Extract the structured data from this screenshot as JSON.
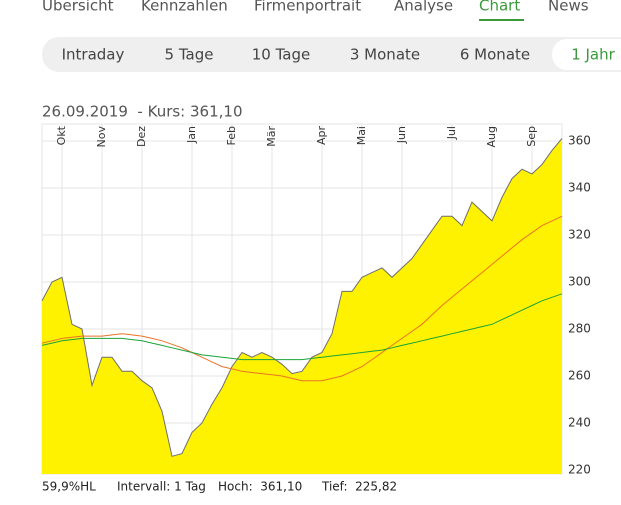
{
  "nav": {
    "tabs": [
      "Übersicht",
      "Kennzahlen",
      "Firmenportrait",
      "Analyse",
      "Chart",
      "News"
    ],
    "active": 4
  },
  "ranges": {
    "tabs": [
      "Intraday",
      "5 Tage",
      "10 Tage",
      "3 Monate",
      "6 Monate",
      "1 Jahr"
    ],
    "active": 5
  },
  "chart_data": {
    "type": "area",
    "title": "26.09.2019  - Kurs: 361,10",
    "categories": [
      null,
      null,
      "Okt",
      null,
      null,
      null,
      "Nov",
      null,
      null,
      null,
      "Dez",
      null,
      null,
      null,
      null,
      "Jan",
      null,
      null,
      null,
      "Feb",
      null,
      null,
      null,
      "Mär",
      null,
      null,
      null,
      null,
      "Apr",
      null,
      null,
      null,
      "Mai",
      null,
      null,
      null,
      "Jun",
      null,
      null,
      null,
      null,
      "Jul",
      null,
      null,
      null,
      "Aug",
      null,
      null,
      null,
      "Sep",
      null,
      null,
      null
    ],
    "series": [
      {
        "color": "#fff200",
        "line_color": "#6e6e6e",
        "fill": true,
        "values": [
          292,
          300,
          302,
          282,
          280,
          256,
          268,
          268,
          262,
          262,
          258,
          255,
          245,
          225.82,
          227,
          236,
          240,
          248,
          255,
          264,
          270,
          268,
          270,
          268,
          265,
          261,
          262,
          268,
          270,
          278,
          296,
          296,
          302,
          304,
          306,
          302,
          306,
          310,
          316,
          322,
          328,
          328,
          324,
          334,
          330,
          326,
          336,
          344,
          348,
          346,
          350,
          356,
          361.1
        ]
      },
      {
        "color": "#e8742a",
        "values": [
          274,
          275,
          276,
          276.5,
          277,
          277,
          277,
          277.5,
          278,
          277.5,
          277,
          276,
          275,
          273.5,
          272,
          270,
          268,
          266,
          264,
          263,
          262,
          261.5,
          261,
          260.5,
          260,
          259,
          258,
          258,
          258,
          259,
          260,
          262,
          264,
          267,
          270,
          273,
          276,
          279,
          282,
          286,
          290,
          293.5,
          297,
          300.5,
          304,
          307.5,
          311,
          314.5,
          318,
          321,
          324,
          326,
          328
        ]
      },
      {
        "color": "#1aa33a",
        "values": [
          273,
          274,
          275,
          275.5,
          276,
          276,
          276,
          276,
          276,
          275.5,
          275,
          274,
          273,
          272,
          271,
          270,
          269,
          268.5,
          268,
          267.5,
          267,
          267,
          267,
          267,
          267,
          267,
          267,
          267.5,
          268,
          268.5,
          269,
          269.5,
          270,
          270.5,
          271,
          272,
          273,
          274,
          275,
          276,
          277,
          278,
          279,
          280,
          281,
          282,
          284,
          286,
          288,
          290,
          292,
          293.5,
          295
        ]
      }
    ],
    "ylim": [
      220,
      360
    ],
    "yticks": [
      220,
      240,
      260,
      280,
      300,
      320,
      340,
      360
    ],
    "grid": true
  },
  "footer": [
    "59,9%HL",
    "Intervall: 1 Tag",
    "Hoch:  361,10",
    "Tief:  225,82"
  ]
}
